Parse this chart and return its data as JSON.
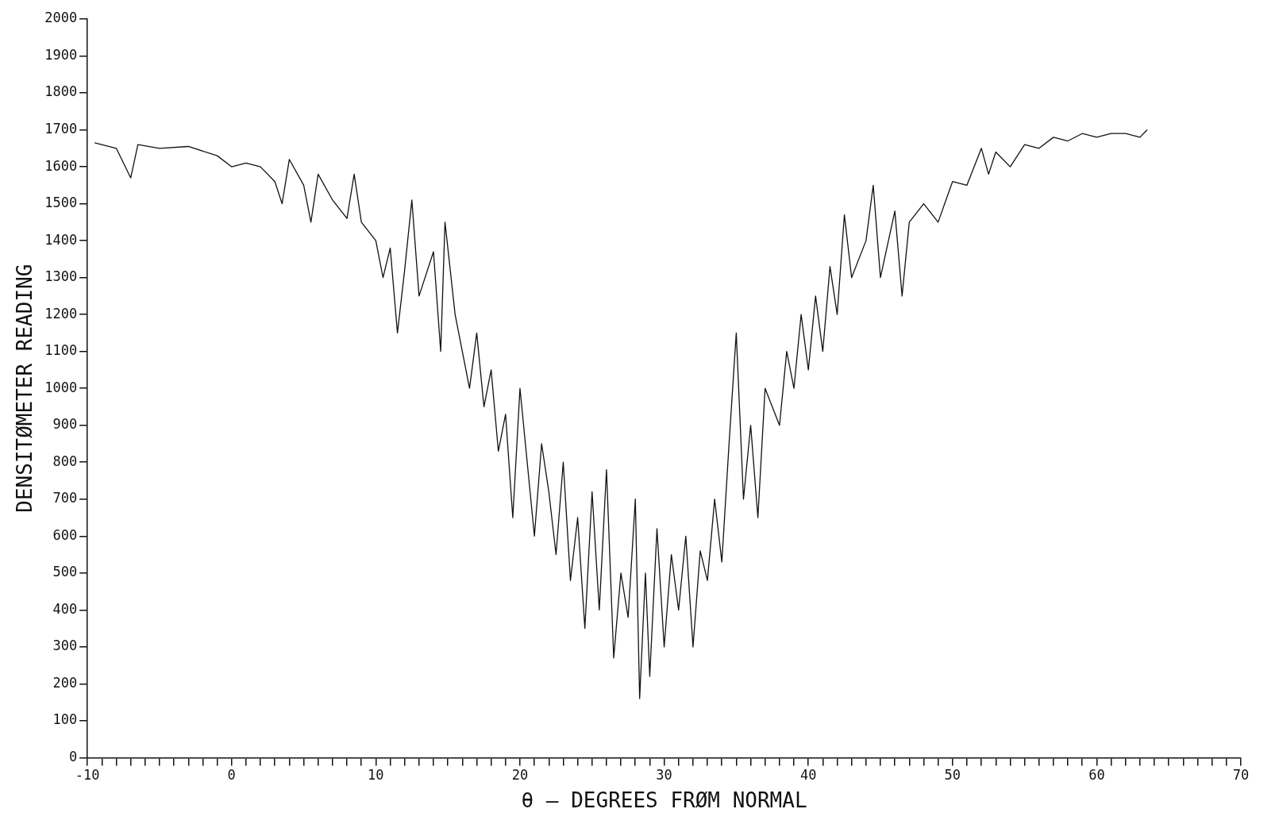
{
  "chart_data": {
    "type": "line",
    "xlabel": "θ — DEGREES FRØM NORMAL",
    "ylabel": "DENSITØMETER READING",
    "xlim": [
      -10,
      70
    ],
    "ylim": [
      0,
      2000
    ],
    "xticks": [
      -10,
      {
        "value": -9,
        "label": null
      },
      {
        "value": -8,
        "label": null
      },
      {
        "value": -7,
        "label": null
      },
      {
        "value": -6,
        "label": null
      },
      {
        "value": -5,
        "label": null
      },
      {
        "value": -4,
        "label": null
      },
      {
        "value": -3,
        "label": null
      },
      {
        "value": -2,
        "label": null
      },
      {
        "value": -1,
        "label": null
      },
      0,
      {
        "value": 1,
        "label": null
      },
      {
        "value": 2,
        "label": null
      },
      {
        "value": 3,
        "label": null
      },
      {
        "value": 4,
        "label": null
      },
      {
        "value": 5,
        "label": null
      },
      {
        "value": 6,
        "label": null
      },
      {
        "value": 7,
        "label": null
      },
      {
        "value": 8,
        "label": null
      },
      {
        "value": 9,
        "label": null
      },
      10,
      {
        "value": 11,
        "label": null
      },
      {
        "value": 12,
        "label": null
      },
      {
        "value": 13,
        "label": null
      },
      {
        "value": 14,
        "label": null
      },
      {
        "value": 15,
        "label": null
      },
      {
        "value": 16,
        "label": null
      },
      {
        "value": 17,
        "label": null
      },
      {
        "value": 18,
        "label": null
      },
      {
        "value": 19,
        "label": null
      },
      20,
      {
        "value": 21,
        "label": null
      },
      {
        "value": 22,
        "label": null
      },
      {
        "value": 23,
        "label": null
      },
      {
        "value": 24,
        "label": null
      },
      {
        "value": 25,
        "label": null
      },
      {
        "value": 26,
        "label": null
      },
      {
        "value": 27,
        "label": null
      },
      {
        "value": 28,
        "label": null
      },
      {
        "value": 29,
        "label": null
      },
      30,
      {
        "value": 31,
        "label": null
      },
      {
        "value": 32,
        "label": null
      },
      {
        "value": 33,
        "label": null
      },
      {
        "value": 34,
        "label": null
      },
      {
        "value": 35,
        "label": null
      },
      {
        "value": 36,
        "label": null
      },
      {
        "value": 37,
        "label": null
      },
      {
        "value": 38,
        "label": null
      },
      {
        "value": 39,
        "label": null
      },
      40,
      {
        "value": 41,
        "label": null
      },
      {
        "value": 42,
        "label": null
      },
      {
        "value": 43,
        "label": null
      },
      {
        "value": 44,
        "label": null
      },
      {
        "value": 45,
        "label": null
      },
      {
        "value": 46,
        "label": null
      },
      {
        "value": 47,
        "label": null
      },
      {
        "value": 48,
        "label": null
      },
      {
        "value": 49,
        "label": null
      },
      50,
      {
        "value": 51,
        "label": null
      },
      {
        "value": 52,
        "label": null
      },
      {
        "value": 53,
        "label": null
      },
      {
        "value": 54,
        "label": null
      },
      {
        "value": 55,
        "label": null
      },
      {
        "value": 56,
        "label": null
      },
      {
        "value": 57,
        "label": null
      },
      {
        "value": 58,
        "label": null
      },
      {
        "value": 59,
        "label": null
      },
      60,
      {
        "value": 61,
        "label": null
      },
      {
        "value": 62,
        "label": null
      },
      {
        "value": 63,
        "label": null
      },
      {
        "value": 64,
        "label": null
      },
      {
        "value": 65,
        "label": null
      },
      {
        "value": 66,
        "label": null
      },
      {
        "value": 67,
        "label": null
      },
      {
        "value": 68,
        "label": null
      },
      {
        "value": 69,
        "label": null
      },
      70
    ],
    "yticks": [
      0,
      100,
      200,
      300,
      400,
      500,
      600,
      700,
      800,
      900,
      1000,
      1100,
      1200,
      1300,
      1400,
      1500,
      1600,
      1700,
      1800,
      1900,
      2000
    ],
    "grid": false,
    "legend": false,
    "marker": "none",
    "line_style": "solid",
    "series": [
      {
        "color": "#111111",
        "x": [
          -9.5,
          -8,
          -7,
          -6.5,
          -5,
          -3,
          -1,
          0,
          1,
          2,
          3,
          3.5,
          4,
          5,
          5.5,
          6,
          7,
          8,
          8.5,
          9,
          10,
          10.5,
          11,
          11.5,
          12,
          12.5,
          13,
          14,
          14.5,
          14.8,
          15.5,
          16,
          16.5,
          17,
          17.5,
          18,
          18.5,
          19,
          19.5,
          20,
          20.5,
          21,
          21.5,
          22,
          22.5,
          23,
          23.5,
          24,
          24.5,
          25,
          25.5,
          26,
          26.5,
          27,
          27.5,
          28,
          28.3,
          28.7,
          29,
          29.5,
          30,
          30.5,
          31,
          31.5,
          32,
          32.5,
          33,
          33.5,
          34,
          34.5,
          35,
          35.5,
          36,
          36.5,
          37,
          38,
          38.5,
          39,
          39.5,
          40,
          40.5,
          41,
          41.5,
          42,
          42.5,
          43,
          44,
          44.5,
          45,
          46,
          46.5,
          47,
          48,
          49,
          50,
          51,
          52,
          52.5,
          53,
          54,
          55,
          56,
          57,
          58,
          59,
          60,
          61,
          62,
          63,
          63.5
        ],
        "values": [
          1665,
          1650,
          1570,
          1660,
          1650,
          1655,
          1630,
          1600,
          1610,
          1600,
          1560,
          1500,
          1620,
          1550,
          1450,
          1580,
          1510,
          1460,
          1580,
          1450,
          1400,
          1300,
          1380,
          1150,
          1320,
          1510,
          1250,
          1370,
          1100,
          1450,
          1200,
          1100,
          1000,
          1150,
          950,
          1050,
          830,
          930,
          650,
          1000,
          800,
          600,
          850,
          720,
          550,
          800,
          480,
          650,
          350,
          720,
          400,
          780,
          270,
          500,
          380,
          700,
          160,
          500,
          220,
          620,
          300,
          550,
          400,
          600,
          300,
          560,
          480,
          700,
          530,
          850,
          1150,
          700,
          900,
          650,
          1000,
          900,
          1100,
          1000,
          1200,
          1050,
          1250,
          1100,
          1330,
          1200,
          1470,
          1300,
          1400,
          1550,
          1300,
          1480,
          1250,
          1450,
          1500,
          1450,
          1560,
          1550,
          1650,
          1580,
          1640,
          1600,
          1660,
          1650,
          1680,
          1670,
          1690,
          1680,
          1690,
          1690,
          1680,
          1700
        ]
      }
    ]
  }
}
